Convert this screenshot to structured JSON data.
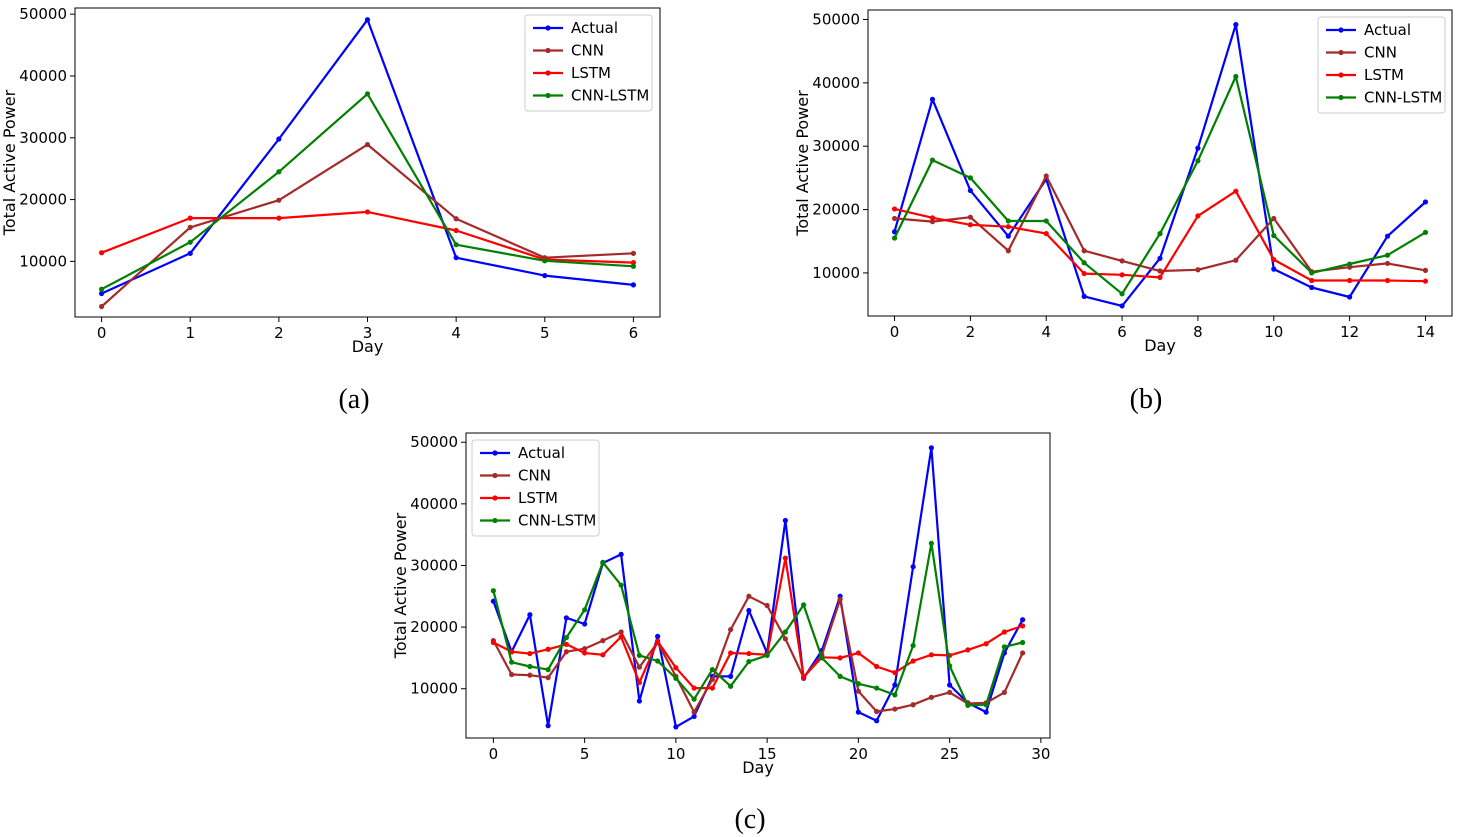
{
  "series_colors": {
    "Actual": "#0000ff",
    "CNN": "#a52a2a",
    "LSTM": "#ff0000",
    "CNN-LSTM": "#008000"
  },
  "chart_data": [
    {
      "caption": "(a)",
      "type": "line",
      "xlabel": "Day",
      "ylabel": "Total Active Power",
      "xlim": [
        -0.3,
        6.3
      ],
      "ylim": [
        1000,
        51000
      ],
      "xticks": [
        0,
        1,
        2,
        3,
        4,
        5,
        6
      ],
      "yticks": [
        10000,
        20000,
        30000,
        40000,
        50000
      ],
      "legend_position": "top-right",
      "x": [
        0,
        1,
        2,
        3,
        4,
        5,
        6
      ],
      "series": [
        {
          "name": "Actual",
          "values": [
            4800,
            11300,
            29800,
            49100,
            10600,
            7700,
            6200
          ]
        },
        {
          "name": "CNN",
          "values": [
            2700,
            15500,
            19900,
            28900,
            16900,
            10600,
            11300
          ]
        },
        {
          "name": "LSTM",
          "values": [
            11400,
            17000,
            17000,
            18000,
            15000,
            10300,
            9800
          ]
        },
        {
          "name": "CNN-LSTM",
          "values": [
            5500,
            13100,
            24500,
            37100,
            12700,
            10100,
            9200
          ]
        }
      ]
    },
    {
      "caption": "(b)",
      "type": "line",
      "xlabel": "Day",
      "ylabel": "Total Active Power",
      "xlim": [
        -0.7,
        14.7
      ],
      "ylim": [
        3200,
        51500
      ],
      "xticks": [
        0,
        2,
        4,
        6,
        8,
        10,
        12,
        14
      ],
      "yticks": [
        10000,
        20000,
        30000,
        40000,
        50000
      ],
      "legend_position": "top-right",
      "x": [
        0,
        1,
        2,
        3,
        4,
        5,
        6,
        7,
        8,
        9,
        10,
        11,
        12,
        13,
        14
      ],
      "series": [
        {
          "name": "Actual",
          "values": [
            16500,
            37400,
            23000,
            15800,
            24800,
            6300,
            4800,
            12300,
            29700,
            49200,
            10600,
            7700,
            6200,
            15800,
            21200
          ]
        },
        {
          "name": "CNN",
          "values": [
            18600,
            18100,
            18800,
            13500,
            25300,
            13500,
            11900,
            10300,
            10500,
            12000,
            18600,
            10200,
            10900,
            11500,
            10400
          ]
        },
        {
          "name": "LSTM",
          "values": [
            20100,
            18700,
            17600,
            17300,
            16200,
            9900,
            9700,
            9300,
            19000,
            22900,
            12100,
            8800,
            8800,
            8800,
            8700
          ]
        },
        {
          "name": "CNN-LSTM",
          "values": [
            15500,
            27800,
            25000,
            18200,
            18200,
            11600,
            6700,
            16200,
            27700,
            41000,
            15900,
            10000,
            11400,
            12800,
            16400
          ]
        }
      ]
    },
    {
      "caption": "(c)",
      "type": "line",
      "xlabel": "Day",
      "ylabel": "Total Active Power",
      "xlim": [
        -1.5,
        30.5
      ],
      "ylim": [
        2000,
        51500
      ],
      "xticks": [
        0,
        5,
        10,
        15,
        20,
        25,
        30
      ],
      "yticks": [
        10000,
        20000,
        30000,
        40000,
        50000
      ],
      "legend_position": "top-left",
      "x": [
        0,
        1,
        2,
        3,
        4,
        5,
        6,
        7,
        8,
        9,
        10,
        11,
        12,
        13,
        14,
        15,
        16,
        17,
        18,
        19,
        20,
        21,
        22,
        23,
        24,
        25,
        26,
        27,
        28,
        29
      ],
      "series": [
        {
          "name": "Actual",
          "values": [
            24200,
            16000,
            22000,
            4000,
            21500,
            20500,
            30400,
            31800,
            8000,
            18500,
            3800,
            5500,
            12000,
            12000,
            22700,
            15800,
            37300,
            11700,
            16200,
            25000,
            6200,
            4800,
            10600,
            29800,
            49100,
            10600,
            7700,
            6200,
            15800,
            21200
          ]
        },
        {
          "name": "CNN",
          "values": [
            17800,
            12300,
            12200,
            11800,
            16000,
            16500,
            17800,
            19200,
            13500,
            17500,
            12000,
            6200,
            11500,
            19600,
            25000,
            23500,
            18100,
            11800,
            15500,
            24500,
            9600,
            6300,
            6700,
            7400,
            8600,
            9400,
            7600,
            7700,
            9400,
            15800
          ]
        },
        {
          "name": "LSTM",
          "values": [
            17500,
            16000,
            15700,
            16400,
            17200,
            15800,
            15500,
            18400,
            11000,
            17700,
            13400,
            10100,
            10100,
            15800,
            15700,
            15500,
            31200,
            11900,
            15100,
            15000,
            15800,
            13600,
            12600,
            14500,
            15500,
            15400,
            16300,
            17300,
            19200,
            20200
          ]
        },
        {
          "name": "CNN-LSTM",
          "values": [
            25900,
            14300,
            13600,
            13100,
            18300,
            22800,
            30500,
            26800,
            15400,
            14500,
            11700,
            8300,
            13100,
            10400,
            14400,
            15400,
            19200,
            23600,
            15000,
            12000,
            10800,
            10100,
            9000,
            17000,
            33600,
            13700,
            7300,
            7400,
            16800,
            17500
          ]
        }
      ]
    }
  ]
}
